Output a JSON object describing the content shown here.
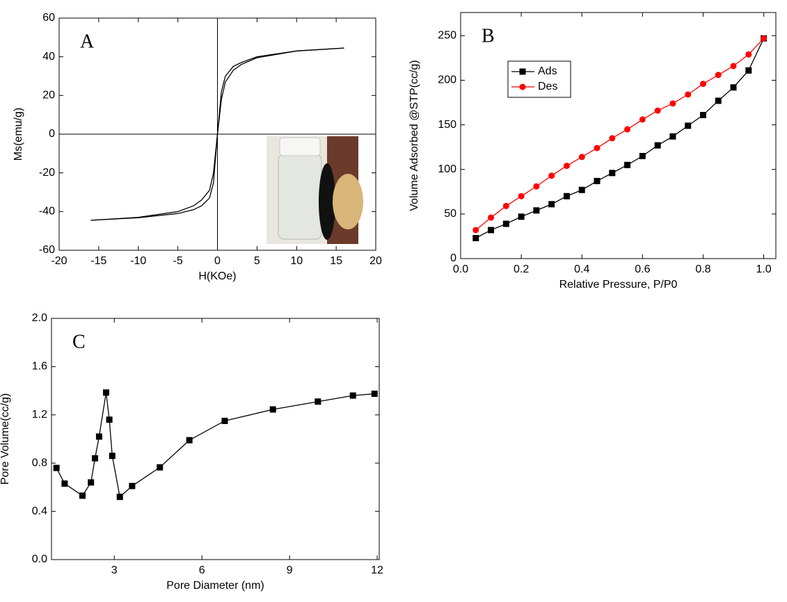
{
  "chart_data": [
    {
      "type": "line",
      "label": "A",
      "x_label": "H(KOe)",
      "y_label": "Ms(emu/g)",
      "zero_lines": true,
      "grid": false,
      "xlim": [
        -20,
        20
      ],
      "xticks": [
        -20,
        -15,
        -10,
        -5,
        0,
        5,
        10,
        15,
        20
      ],
      "ylim": [
        -60,
        60
      ],
      "yticks": [
        -60,
        -40,
        -20,
        0,
        20,
        40,
        60
      ],
      "series": [
        {
          "color": "#000000",
          "x": [
            -16,
            -10,
            -5,
            -3,
            -2,
            -1,
            -0.5,
            0,
            0.5,
            1,
            2,
            3,
            5,
            10,
            16
          ],
          "values": [
            -44.5,
            -43,
            -40,
            -37,
            -34,
            -29,
            -20,
            0,
            22,
            30,
            35,
            37,
            40,
            43,
            44.5
          ]
        },
        {
          "color": "#000000",
          "x": [
            -16,
            -10,
            -5,
            -3,
            -2,
            -1,
            -0.5,
            0,
            0.5,
            1,
            2,
            3,
            5,
            10,
            16
          ],
          "values": [
            -44.5,
            -43.2,
            -41,
            -39,
            -37,
            -33,
            -25,
            0,
            18,
            27,
            33,
            36,
            39.5,
            43,
            44.5
          ]
        }
      ]
    },
    {
      "type": "line",
      "label": "B",
      "x_label": "Relative Pressure, P/P0",
      "y_label": "Volume Adsorbed @STP(cc/g)",
      "legend_loc": "upper left",
      "grid": false,
      "xlim": [
        0,
        1.04
      ],
      "xticks": [
        {
          "value": 0,
          "label": "0.0"
        },
        {
          "value": 0.2,
          "label": "0.2"
        },
        {
          "value": 0.4,
          "label": "0.4"
        },
        {
          "value": 0.6,
          "label": "0.6"
        },
        {
          "value": 0.8,
          "label": "0.8"
        },
        {
          "value": 1,
          "label": "1.0"
        }
      ],
      "ylim": [
        0,
        276
      ],
      "yticks": [
        0,
        50,
        100,
        150,
        200,
        250
      ],
      "series": [
        {
          "name": "Ads",
          "color": "#000000",
          "marker": "square",
          "x": [
            0.05,
            0.1,
            0.15,
            0.2,
            0.25,
            0.3,
            0.35,
            0.4,
            0.45,
            0.5,
            0.55,
            0.6,
            0.65,
            0.7,
            0.75,
            0.8,
            0.85,
            0.9,
            0.95,
            1
          ],
          "values": [
            23,
            32,
            39,
            47,
            54,
            61,
            70,
            77,
            87,
            96,
            105,
            115,
            127,
            137,
            149,
            161,
            177,
            192,
            211,
            247
          ]
        },
        {
          "name": "Des",
          "color": "#ff0000",
          "marker": "circle",
          "x": [
            0.05,
            0.1,
            0.15,
            0.2,
            0.25,
            0.3,
            0.35,
            0.4,
            0.45,
            0.5,
            0.55,
            0.6,
            0.65,
            0.7,
            0.75,
            0.8,
            0.85,
            0.9,
            0.95,
            1
          ],
          "values": [
            32,
            46,
            59,
            70,
            81,
            93,
            104,
            114,
            124,
            135,
            145,
            156,
            166,
            174,
            184,
            196,
            206,
            216,
            229,
            247
          ]
        }
      ]
    },
    {
      "type": "line",
      "label": "C",
      "x_label": "Pore Diameter (nm)",
      "y_label": "Pore Volume(cc/g)",
      "grid": false,
      "xlim": [
        0.85,
        12.07
      ],
      "xticks": [
        3,
        6,
        9,
        12
      ],
      "ylim": [
        0,
        2
      ],
      "yticks": [
        {
          "value": 0,
          "label": "0.0"
        },
        {
          "value": 0.4,
          "label": "0.4"
        },
        {
          "value": 0.8,
          "label": "0.8"
        },
        {
          "value": 1.2,
          "label": "1.2"
        },
        {
          "value": 1.6,
          "label": "1.6"
        },
        {
          "value": 2,
          "label": "2.0"
        }
      ],
      "series": [
        {
          "color": "#000000",
          "marker": "square",
          "x": [
            1.02,
            1.3,
            1.91,
            2.2,
            2.34,
            2.48,
            2.72,
            2.83,
            2.93,
            3.19,
            3.61,
            4.56,
            5.57,
            6.78,
            8.43,
            9.97,
            11.17,
            11.91
          ],
          "values": [
            0.76,
            0.63,
            0.53,
            0.64,
            0.84,
            1.02,
            1.385,
            1.16,
            0.86,
            0.52,
            0.61,
            0.765,
            0.99,
            1.15,
            1.245,
            1.31,
            1.36,
            1.375
          ]
        }
      ]
    }
  ]
}
